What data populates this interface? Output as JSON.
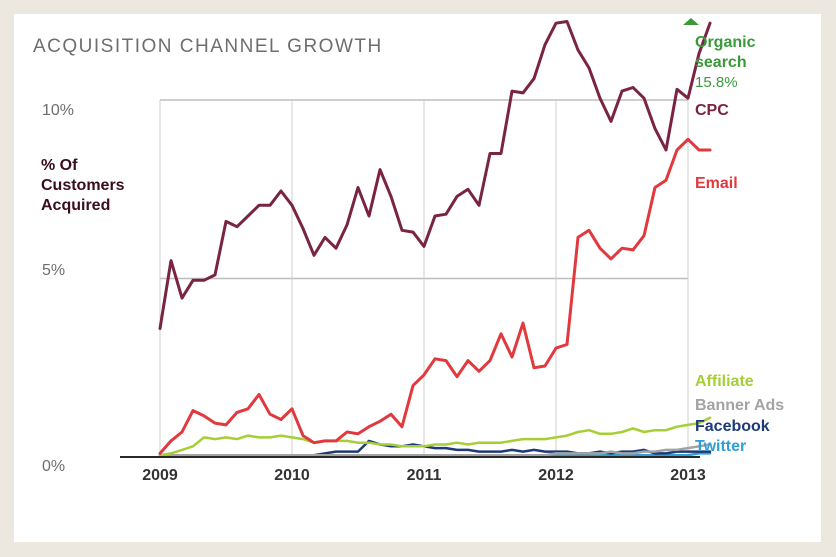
{
  "chart_data": {
    "type": "line",
    "title": "ACQUISITION CHANNEL GROWTH",
    "ylabel_lines": [
      "% Of",
      "Customers",
      "Acquired"
    ],
    "y_ticks": [
      {
        "label": "10%",
        "value": 10
      },
      {
        "label": "5%",
        "value": 5
      },
      {
        "label": "0%",
        "value": 0
      }
    ],
    "x_ticks": [
      "2009",
      "2010",
      "2011",
      "2012",
      "2013"
    ],
    "ylim": [
      0,
      10
    ],
    "grid": true,
    "offchart_indicator": {
      "name": "Organic search",
      "name_lines": [
        "Organic",
        "search"
      ],
      "value_text": "15.8%",
      "color": "#3a9a3a"
    },
    "series": [
      {
        "name": "CPC",
        "color": "#7a2444",
        "values": [
          3.6,
          5.5,
          4.45,
          4.95,
          4.95,
          5.1,
          6.6,
          6.45,
          6.75,
          7.05,
          7.05,
          7.45,
          7.05,
          6.4,
          5.65,
          6.15,
          5.85,
          6.5,
          7.55,
          6.75,
          8.05,
          7.3,
          6.35,
          6.3,
          5.9,
          6.75,
          6.8,
          7.3,
          7.5,
          7.05,
          8.5,
          8.5,
          10.25,
          10.2,
          10.6,
          11.55,
          12.15,
          12.2,
          11.4,
          10.9,
          10.05,
          9.4,
          10.25,
          10.35,
          10.05,
          9.2,
          8.6,
          10.3,
          10.05,
          11.3,
          12.15
        ]
      },
      {
        "name": "Email",
        "color": "#e0393e",
        "values": [
          0.1,
          0.45,
          0.7,
          1.3,
          1.15,
          0.95,
          0.9,
          1.25,
          1.35,
          1.75,
          1.2,
          1.05,
          1.35,
          0.6,
          0.4,
          0.45,
          0.45,
          0.7,
          0.65,
          0.85,
          1.0,
          1.2,
          0.85,
          2.0,
          2.3,
          2.75,
          2.7,
          2.25,
          2.7,
          2.4,
          2.7,
          3.45,
          2.8,
          3.75,
          2.5,
          2.55,
          3.05,
          3.15,
          6.15,
          6.35,
          5.85,
          5.55,
          5.85,
          5.8,
          6.2,
          7.55,
          7.75,
          8.6,
          8.9,
          8.6,
          8.6
        ]
      },
      {
        "name": "Affiliate",
        "color": "#a6cf35",
        "values": [
          0.05,
          0.1,
          0.2,
          0.3,
          0.55,
          0.5,
          0.55,
          0.5,
          0.6,
          0.55,
          0.55,
          0.6,
          0.55,
          0.5,
          0.4,
          0.45,
          0.45,
          0.45,
          0.4,
          0.4,
          0.35,
          0.35,
          0.3,
          0.3,
          0.3,
          0.35,
          0.35,
          0.4,
          0.35,
          0.4,
          0.4,
          0.4,
          0.45,
          0.5,
          0.5,
          0.5,
          0.55,
          0.6,
          0.7,
          0.75,
          0.65,
          0.65,
          0.7,
          0.8,
          0.7,
          0.75,
          0.75,
          0.85,
          0.9,
          0.95,
          1.1
        ]
      },
      {
        "name": "Banner Ads",
        "color": "#a3a3a3",
        "values": [
          0.05,
          0.05,
          0.05,
          0.05,
          0.05,
          0.05,
          0.05,
          0.05,
          0.05,
          0.05,
          0.05,
          0.05,
          0.05,
          0.05,
          0.05,
          0.05,
          0.05,
          0.05,
          0.05,
          0.05,
          0.05,
          0.05,
          0.05,
          0.05,
          0.05,
          0.05,
          0.05,
          0.05,
          0.05,
          0.05,
          0.05,
          0.05,
          0.05,
          0.05,
          0.05,
          0.05,
          0.1,
          0.1,
          0.1,
          0.1,
          0.1,
          0.15,
          0.1,
          0.1,
          0.15,
          0.15,
          0.2,
          0.2,
          0.25,
          0.3,
          0.35
        ]
      },
      {
        "name": "Facebook",
        "color": "#1f3a78",
        "values": [
          0.05,
          0.05,
          0.05,
          0.05,
          0.05,
          0.05,
          0.05,
          0.05,
          0.05,
          0.05,
          0.05,
          0.05,
          0.05,
          0.05,
          0.05,
          0.1,
          0.15,
          0.15,
          0.15,
          0.45,
          0.35,
          0.3,
          0.3,
          0.35,
          0.3,
          0.25,
          0.25,
          0.2,
          0.2,
          0.15,
          0.15,
          0.15,
          0.2,
          0.15,
          0.2,
          0.15,
          0.15,
          0.15,
          0.1,
          0.1,
          0.15,
          0.1,
          0.15,
          0.15,
          0.2,
          0.1,
          0.1,
          0.15,
          0.15,
          0.15,
          0.15
        ]
      },
      {
        "name": "Twitter",
        "color": "#2f9fd6",
        "values": [
          0.05,
          0.05,
          0.05,
          0.05,
          0.05,
          0.05,
          0.05,
          0.05,
          0.05,
          0.05,
          0.05,
          0.05,
          0.05,
          0.05,
          0.05,
          0.05,
          0.05,
          0.05,
          0.05,
          0.05,
          0.05,
          0.05,
          0.05,
          0.05,
          0.05,
          0.05,
          0.05,
          0.05,
          0.05,
          0.05,
          0.05,
          0.05,
          0.05,
          0.05,
          0.05,
          0.05,
          0.05,
          0.05,
          0.05,
          0.05,
          0.05,
          0.05,
          0.05,
          0.05,
          0.05,
          0.05,
          0.05,
          0.05,
          0.05,
          0.1,
          0.1
        ]
      }
    ]
  }
}
